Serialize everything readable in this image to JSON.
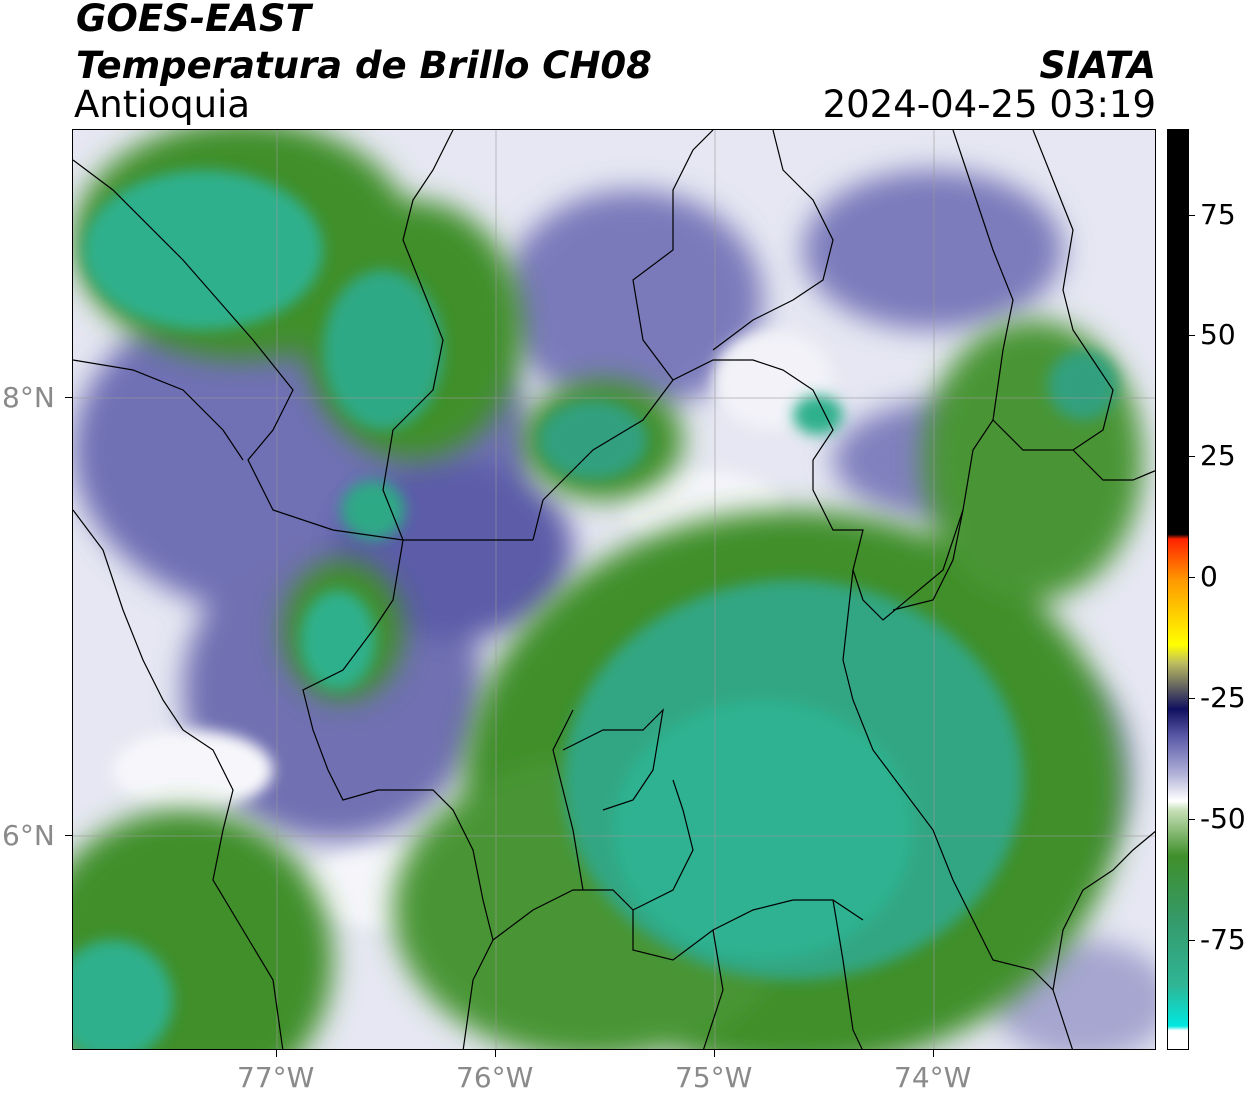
{
  "header": {
    "satellite": "GOES-EAST",
    "product": "Temperatura de Brillo CH08",
    "region": "Antioquia",
    "institution": "SIATA",
    "datetime": "2024-04-25 03:19"
  },
  "map": {
    "latitude_labels": [
      "8°N",
      "6°N"
    ],
    "longitude_labels": [
      "77°W",
      "76°W",
      "75°W",
      "74°W"
    ]
  },
  "colorbar": {
    "tick_labels": [
      "75",
      "50",
      "25",
      "0",
      "-25",
      "-50",
      "-75"
    ],
    "colors": {
      "warm_max": "#000000",
      "red": "#ff2200",
      "orange": "#ff9900",
      "yellow": "#ffff00",
      "navy": "#101060",
      "purple": "#5a5aa8",
      "white": "#ffffff",
      "green": "#3f8f2a",
      "teal": "#2fb595",
      "cyan": "#00e8e0"
    }
  }
}
